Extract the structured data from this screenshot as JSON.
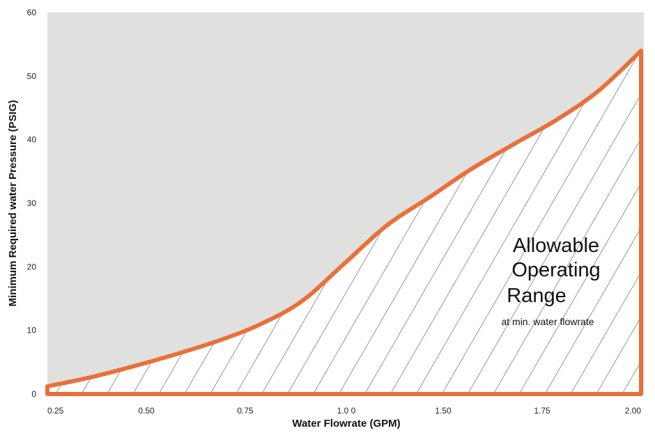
{
  "chart_data": {
    "type": "area",
    "xlabel": "Water Flowrate (GPM)",
    "ylabel": "Minimum Required water Pressure (PSIG)",
    "xlim": [
      0.25,
      2.0
    ],
    "ylim": [
      0,
      60
    ],
    "x_ticks": [
      "0.25",
      "0.50",
      "0.75",
      "1.0 0",
      "1.50",
      "1.75",
      "2.00"
    ],
    "y_ticks": [
      "0",
      "10",
      "20",
      "30",
      "40",
      "50",
      "60"
    ],
    "series": [
      {
        "x": [
          0.25,
          0.375,
          0.5,
          0.625,
          0.75,
          0.875,
          1.0,
          1.125,
          1.25,
          1.375,
          1.5,
          1.625,
          1.75,
          1.875,
          2.0
        ],
        "y": [
          1.2,
          2.6,
          4.3,
          6.2,
          8.3,
          10.9,
          14.6,
          20.5,
          26.5,
          30.9,
          35.4,
          39.3,
          43.1,
          47.7,
          54.0
        ]
      }
    ],
    "annotation": {
      "title_lines": [
        "Allowable",
        "Operating",
        "Range"
      ],
      "subtitle": "at min. water flowrate"
    },
    "colors": {
      "curve": "#e8703a",
      "background": "#e0e0df",
      "hatch": "#333333"
    },
    "grid": false
  }
}
